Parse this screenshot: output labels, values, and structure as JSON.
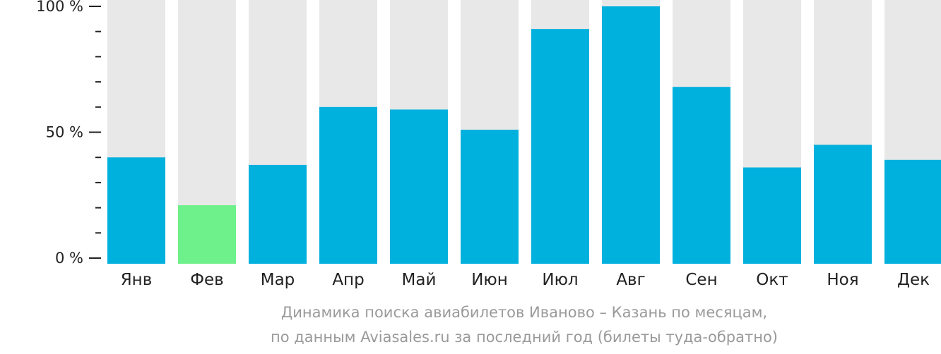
{
  "chart_data": {
    "type": "bar",
    "categories": [
      "Янв",
      "Фев",
      "Мар",
      "Апр",
      "Май",
      "Июн",
      "Июл",
      "Авг",
      "Сен",
      "Окт",
      "Ноя",
      "Дек"
    ],
    "values": [
      40,
      21,
      37,
      60,
      59,
      51,
      91,
      100,
      68,
      36,
      45,
      39
    ],
    "highlight_index": 1,
    "ylim": [
      0,
      100
    ],
    "yticks": [
      {
        "value": 0,
        "label": "0 %"
      },
      {
        "value": 50,
        "label": "50 %"
      },
      {
        "value": 100,
        "label": "100 %"
      }
    ],
    "minor_tick_step": 10,
    "title": "",
    "xlabel": "",
    "ylabel": "",
    "grid": false,
    "colors": {
      "bar": "#00b0dd",
      "highlight": "#6ef08a",
      "background_bar": "#e8e8e8",
      "axis": "#222222"
    }
  },
  "caption": {
    "line1": "Динамика поиска авиабилетов Иваново – Казань по месяцам,",
    "line2": "по данным Aviasales.ru за последний год (билеты туда-обратно)"
  }
}
